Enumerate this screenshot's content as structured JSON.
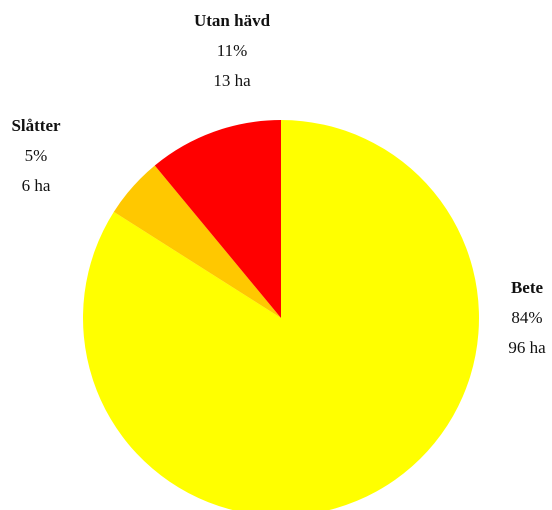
{
  "chart_data": {
    "type": "pie",
    "categories": [
      "Bete",
      "Slåtter",
      "Utan hävd"
    ],
    "values": [
      84,
      5,
      11
    ],
    "value_labels": [
      "84%",
      "5%",
      "11%"
    ],
    "area_labels": [
      "96 ha",
      "6 ha",
      "13 ha"
    ],
    "colors": [
      "#ffff00",
      "#ffc800",
      "#ff0000"
    ]
  }
}
